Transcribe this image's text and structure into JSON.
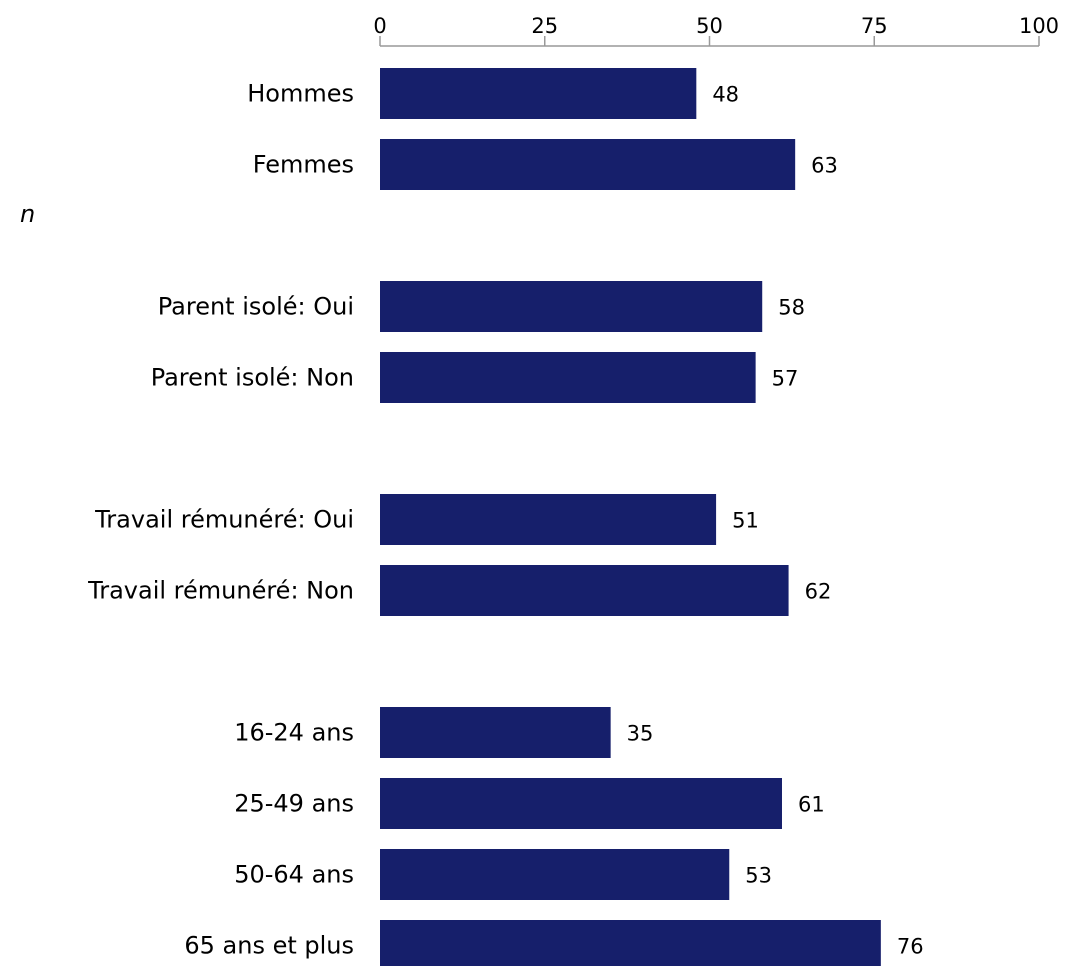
{
  "chart_data": {
    "type": "bar",
    "orientation": "horizontal",
    "title": "",
    "xlabel": "",
    "ylabel": "",
    "xlim": [
      0,
      100
    ],
    "ticks": [
      0,
      25,
      50,
      75,
      100
    ],
    "tick_labels": [
      "0",
      "25",
      "50",
      "75",
      "100"
    ],
    "axis_position": "top",
    "grid": false,
    "legend": "none",
    "bar_color": "#161f6b",
    "categories": [
      "Hommes",
      "Femmes",
      "Parent isolé: Oui",
      "Parent isolé: Non",
      "Travail rémunéré: Oui",
      "Travail rémunéré: Non",
      "16-24 ans",
      "25-49 ans",
      "50-64 ans",
      "65 ans et plus"
    ],
    "values": [
      48,
      63,
      58,
      57,
      51,
      62,
      35,
      61,
      53,
      76
    ],
    "value_labels": [
      "48",
      "63",
      "58",
      "57",
      "51",
      "62",
      "35",
      "61",
      "53",
      "76"
    ],
    "group_sizes": [
      2,
      2,
      2,
      4
    ]
  },
  "stray_text": "n"
}
